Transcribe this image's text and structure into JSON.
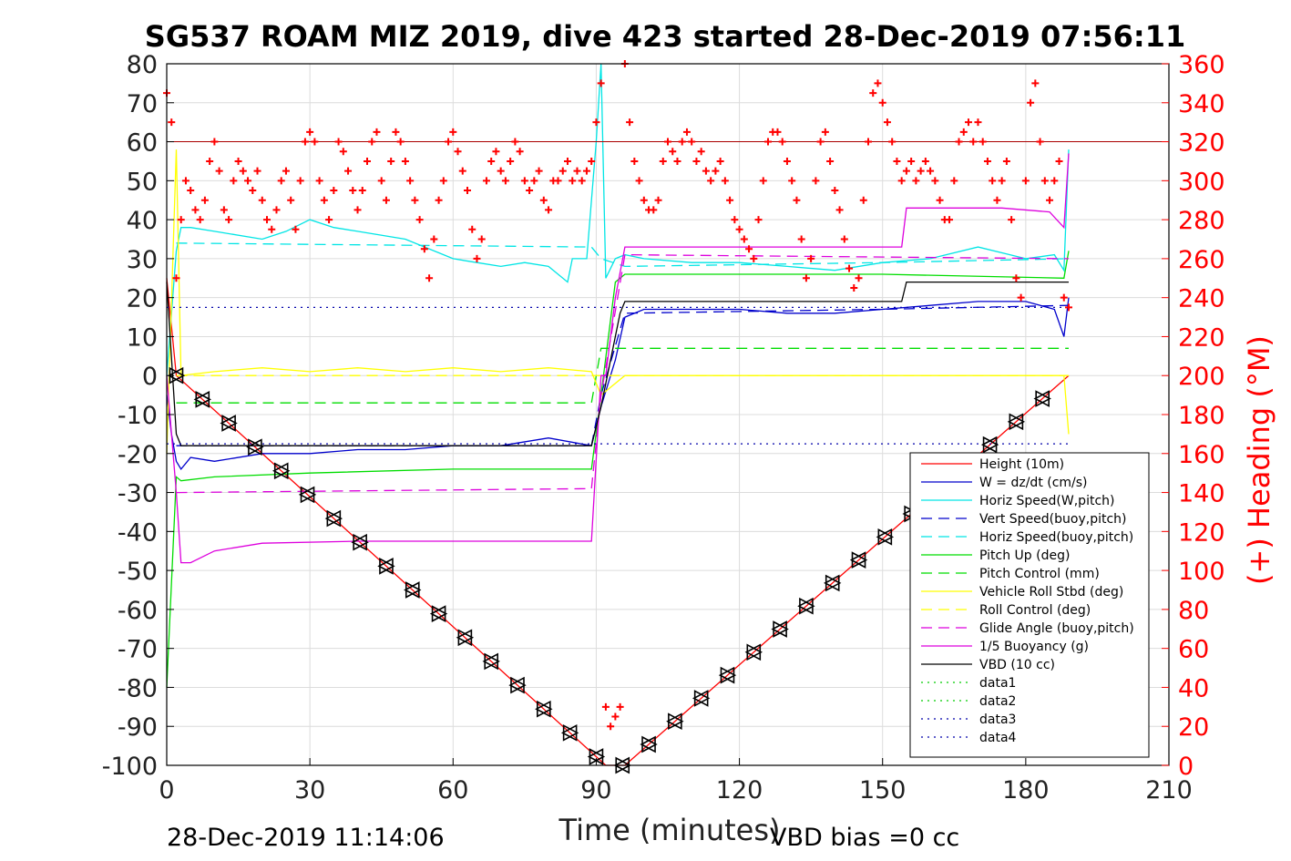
{
  "chart_data": {
    "type": "line",
    "title": "SG537 ROAM MIZ 2019, dive 423 started 28-Dec-2019 07:56:11",
    "xlabel": "Time (minutes)",
    "ylabel_right": "(+) Heading (°M)",
    "xlim": [
      0,
      210
    ],
    "ylim": [
      -100,
      80
    ],
    "ylim_right": [
      0,
      360
    ],
    "xticks": [
      "0",
      "30",
      "60",
      "90",
      "120",
      "150",
      "180",
      "210"
    ],
    "yticks": [
      "80",
      "70",
      "60",
      "50",
      "40",
      "30",
      "20",
      "10",
      "0",
      "-10",
      "-20",
      "-30",
      "-40",
      "-50",
      "-60",
      "-70",
      "-80",
      "-90",
      "-100"
    ],
    "yticks_right": [
      "360",
      "340",
      "320",
      "300",
      "280",
      "260",
      "240",
      "220",
      "200",
      "180",
      "160",
      "140",
      "120",
      "100",
      "80",
      "60",
      "40",
      "20",
      "0"
    ],
    "grid": true,
    "legend_position": "lower-right",
    "footer_left": "28-Dec-2019 11:14:06",
    "footer_right": "VBD bias =0 cc",
    "colors": {
      "height": "#ff0000",
      "w": "#0000cc",
      "horiz": "#00e5e5",
      "pitch": "#00dd00",
      "roll": "#ffff00",
      "buoy": "#dd00dd",
      "vbd": "#000000",
      "heading": "#ff0000",
      "data1": "#00cc00",
      "data3": "#0000aa"
    },
    "series": [
      {
        "name": "Height (10m)",
        "color": "#ff0000",
        "style": "solid",
        "x": [
          0,
          2,
          92,
          96,
          189
        ],
        "y": [
          25,
          0,
          -100,
          -100,
          0
        ]
      },
      {
        "name": "W = dz/dt (cm/s)",
        "color": "#0000cc",
        "style": "solid",
        "x": [
          0,
          1,
          2,
          3,
          5,
          10,
          20,
          30,
          40,
          50,
          60,
          70,
          80,
          89,
          91,
          94,
          96,
          100,
          110,
          120,
          130,
          140,
          150,
          160,
          170,
          180,
          186,
          188,
          189
        ],
        "y": [
          -5,
          -15,
          -22,
          -24,
          -21,
          -22,
          -20,
          -20,
          -19,
          -19,
          -18,
          -18,
          -16,
          -18,
          -8,
          4,
          15,
          17,
          17,
          17,
          16,
          16,
          17,
          18,
          19,
          19,
          17,
          10,
          20
        ]
      },
      {
        "name": "Horiz Speed(W,pitch)",
        "color": "#00e5e5",
        "style": "solid",
        "x": [
          0,
          2,
          3,
          5,
          10,
          20,
          25,
          30,
          35,
          40,
          50,
          60,
          65,
          70,
          75,
          80,
          84,
          85,
          88,
          90,
          91,
          92,
          94,
          96,
          100,
          110,
          120,
          130,
          140,
          150,
          160,
          170,
          180,
          186,
          188,
          189
        ],
        "y": [
          0,
          32,
          38,
          38,
          37,
          35,
          37,
          40,
          38,
          37,
          35,
          30,
          29,
          28,
          29,
          28,
          24,
          30,
          30,
          60,
          80,
          25,
          30,
          31,
          30,
          29,
          29,
          28,
          27,
          29,
          30,
          33,
          30,
          31,
          27,
          58
        ]
      },
      {
        "name": "Vert Speed(buoy,pitch)",
        "color": "#0000cc",
        "style": "dashed",
        "x": [
          2,
          89,
          91,
          96,
          150,
          189
        ],
        "y": [
          -18,
          -18,
          -5,
          16,
          17,
          18
        ]
      },
      {
        "name": "Horiz Speed(buoy,pitch)",
        "color": "#00e5e5",
        "style": "dashed",
        "x": [
          2,
          89,
          91,
          96,
          150,
          189
        ],
        "y": [
          34,
          33,
          30,
          28,
          29,
          30
        ]
      },
      {
        "name": "Pitch Up (deg)",
        "color": "#00dd00",
        "style": "solid",
        "x": [
          0,
          2,
          3,
          10,
          30,
          60,
          89,
          91,
          94,
          96,
          150,
          188,
          189
        ],
        "y": [
          -80,
          -26,
          -27,
          -26,
          -25,
          -24,
          -24,
          -5,
          24,
          26,
          26,
          25,
          32
        ]
      },
      {
        "name": "Pitch Control (mm)",
        "color": "#00dd00",
        "style": "dashed",
        "x": [
          2,
          89,
          91,
          189
        ],
        "y": [
          -7,
          -7,
          7,
          7
        ]
      },
      {
        "name": "Vehicle Roll Stbd (deg)",
        "color": "#ffff00",
        "style": "solid",
        "x": [
          0,
          2,
          3,
          10,
          20,
          30,
          40,
          50,
          60,
          70,
          80,
          89,
          91,
          96,
          120,
          150,
          188,
          189
        ],
        "y": [
          -20,
          58,
          0,
          1,
          2,
          1,
          2,
          1,
          2,
          1,
          2,
          1,
          -5,
          0,
          0,
          0,
          0,
          -15
        ]
      },
      {
        "name": "Roll Control (deg)",
        "color": "#ffff00",
        "style": "dashed",
        "x": [
          2,
          189
        ],
        "y": [
          0,
          0
        ]
      },
      {
        "name": "Glide Angle (buoy,pitch)",
        "color": "#dd00dd",
        "style": "dashed",
        "x": [
          2,
          89,
          91,
          96,
          189
        ],
        "y": [
          -30,
          -29,
          -5,
          31,
          30
        ]
      },
      {
        "name": "1/5 Buoyancy (g)",
        "color": "#dd00dd",
        "style": "solid",
        "x": [
          0,
          2,
          3,
          5,
          10,
          20,
          40,
          89,
          91,
          92,
          94,
          96,
          154,
          155,
          175,
          185,
          188,
          189
        ],
        "y": [
          0,
          -30,
          -48,
          -48,
          -45,
          -43,
          -42.5,
          -42.5,
          0,
          0,
          20,
          33,
          33,
          43,
          43,
          42,
          38,
          57
        ]
      },
      {
        "name": "VBD (10 cc)",
        "color": "#000000",
        "style": "solid",
        "x": [
          0,
          2,
          3,
          89,
          91,
          95,
          96,
          154,
          155,
          189
        ],
        "y": [
          24,
          -15,
          -18,
          -18,
          -8,
          16,
          19,
          19,
          24,
          24
        ]
      },
      {
        "name": "data1",
        "color": "#00cc00",
        "style": "dotted",
        "x": [],
        "y": []
      },
      {
        "name": "data2",
        "color": "#00cc00",
        "style": "dotted",
        "x": [],
        "y": []
      },
      {
        "name": "data3",
        "color": "#0000aa",
        "style": "dotted",
        "x": [
          0,
          189
        ],
        "y": [
          17.5,
          17.5
        ]
      },
      {
        "name": "data4",
        "color": "#0000aa",
        "style": "dotted",
        "x": [
          0,
          189
        ],
        "y": [
          -17.5,
          -17.5
        ]
      }
    ],
    "heading_series": {
      "axis": "right",
      "marker": "+",
      "x": [
        0,
        1,
        2,
        3,
        4,
        5,
        6,
        7,
        8,
        9,
        10,
        11,
        12,
        13,
        14,
        15,
        16,
        17,
        18,
        19,
        20,
        21,
        22,
        23,
        24,
        25,
        26,
        27,
        28,
        29,
        30,
        31,
        32,
        33,
        34,
        35,
        36,
        37,
        38,
        39,
        40,
        41,
        42,
        43,
        44,
        45,
        46,
        47,
        48,
        49,
        50,
        51,
        52,
        53,
        54,
        55,
        56,
        57,
        58,
        59,
        60,
        61,
        62,
        63,
        64,
        65,
        66,
        67,
        68,
        69,
        70,
        71,
        72,
        73,
        74,
        75,
        76,
        77,
        78,
        79,
        80,
        81,
        82,
        83,
        84,
        85,
        86,
        87,
        88,
        89,
        90,
        91,
        92,
        93,
        94,
        95,
        96,
        97,
        98,
        99,
        100,
        101,
        102,
        103,
        104,
        105,
        106,
        107,
        108,
        109,
        110,
        111,
        112,
        113,
        114,
        115,
        116,
        117,
        118,
        119,
        120,
        121,
        122,
        123,
        124,
        125,
        126,
        127,
        128,
        129,
        130,
        131,
        132,
        133,
        134,
        135,
        136,
        137,
        138,
        139,
        140,
        141,
        142,
        143,
        144,
        145,
        146,
        147,
        148,
        149,
        150,
        151,
        152,
        153,
        154,
        155,
        156,
        157,
        158,
        159,
        160,
        161,
        162,
        163,
        164,
        165,
        166,
        167,
        168,
        169,
        170,
        171,
        172,
        173,
        174,
        175,
        176,
        177,
        178,
        179,
        180,
        181,
        182,
        183,
        184,
        185,
        186,
        187,
        188,
        189
      ],
      "y": [
        345,
        330,
        250,
        280,
        300,
        295,
        285,
        280,
        290,
        310,
        320,
        305,
        285,
        280,
        300,
        310,
        305,
        300,
        295,
        305,
        290,
        280,
        275,
        285,
        300,
        305,
        290,
        275,
        300,
        320,
        325,
        320,
        300,
        290,
        280,
        295,
        320,
        315,
        305,
        295,
        285,
        295,
        310,
        320,
        325,
        300,
        290,
        310,
        325,
        320,
        310,
        300,
        290,
        280,
        265,
        250,
        270,
        290,
        300,
        320,
        325,
        315,
        305,
        295,
        275,
        260,
        270,
        300,
        310,
        315,
        305,
        300,
        310,
        320,
        315,
        300,
        295,
        300,
        305,
        290,
        285,
        300,
        300,
        305,
        310,
        300,
        305,
        300,
        305,
        310,
        330,
        350,
        30,
        20,
        25,
        30,
        360,
        330,
        310,
        300,
        290,
        285,
        285,
        290,
        310,
        320,
        315,
        310,
        320,
        325,
        320,
        310,
        315,
        305,
        300,
        305,
        310,
        300,
        290,
        280,
        275,
        270,
        265,
        260,
        280,
        300,
        320,
        325,
        325,
        320,
        310,
        300,
        290,
        270,
        250,
        260,
        300,
        320,
        325,
        310,
        295,
        285,
        270,
        255,
        245,
        250,
        290,
        320,
        345,
        350,
        340,
        330,
        320,
        310,
        300,
        305,
        310,
        300,
        305,
        310,
        305,
        300,
        290,
        280,
        280,
        300,
        320,
        325,
        330,
        320,
        330,
        320,
        310,
        300,
        290,
        300,
        310,
        280,
        250,
        240,
        300,
        340,
        350,
        320,
        300,
        290,
        300,
        310,
        240,
        235
      ]
    }
  }
}
